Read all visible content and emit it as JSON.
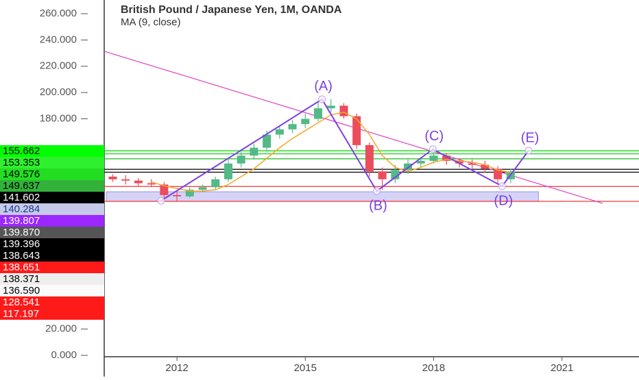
{
  "chart_data": {
    "type": "candlestick",
    "title": "British Pound / Japanese Yen, 1M, OANDA",
    "xlim": [
      2010.3,
      2022.8
    ],
    "xticks": [
      2012,
      2015,
      2018,
      2021
    ],
    "ylim": [
      0,
      260
    ],
    "yticks": [
      {
        "value": 0,
        "label": "0.000"
      },
      {
        "value": 20,
        "label": "20.000"
      },
      {
        "value": 180,
        "label": "180.000"
      },
      {
        "value": 200,
        "label": "200.000"
      },
      {
        "value": 220,
        "label": "220.000"
      },
      {
        "value": 240,
        "label": "240.000"
      },
      {
        "value": 260,
        "label": "260.000"
      }
    ],
    "up_color": "#53b987",
    "down_color": "#eb4d5c",
    "x": [
      2010.5,
      2010.8,
      2011.1,
      2011.4,
      2011.7,
      2012.0,
      2012.3,
      2012.6,
      2012.9,
      2013.2,
      2013.5,
      2013.8,
      2014.1,
      2014.4,
      2014.7,
      2015.0,
      2015.3,
      2015.6,
      2015.9,
      2016.2,
      2016.5,
      2016.8,
      2017.1,
      2017.4,
      2017.7,
      2018.0,
      2018.3,
      2018.6,
      2018.9,
      2019.2,
      2019.5,
      2019.8
    ],
    "open": [
      136,
      134,
      133,
      131,
      130,
      122,
      121,
      126,
      128,
      134,
      146,
      152,
      158,
      168,
      172,
      176,
      180,
      188,
      190,
      182,
      160,
      140,
      134,
      141,
      146,
      148,
      152,
      148,
      146,
      145,
      142,
      134
    ],
    "high": [
      138,
      137,
      135,
      134,
      132,
      125,
      128,
      130,
      136,
      149,
      155,
      161,
      171,
      175,
      179,
      184,
      193,
      195,
      192,
      184,
      162,
      143,
      145,
      149,
      151,
      156,
      154,
      150,
      149,
      148,
      144,
      142
    ],
    "low": [
      132,
      130,
      129,
      128,
      118,
      117,
      120,
      124,
      126,
      132,
      143,
      149,
      155,
      165,
      169,
      173,
      178,
      185,
      180,
      157,
      136,
      126,
      131,
      138,
      143,
      146,
      145,
      143,
      141,
      139,
      130,
      131
    ],
    "close": [
      134,
      133,
      131,
      130,
      122,
      121,
      126,
      128,
      134,
      146,
      152,
      158,
      168,
      172,
      176,
      180,
      188,
      190,
      182,
      160,
      140,
      134,
      141,
      146,
      148,
      152,
      148,
      146,
      145,
      142,
      134,
      140
    ],
    "ma": {
      "name": "MA (9, close)",
      "color": "#f5a623",
      "values": [
        null,
        null,
        null,
        132,
        129,
        127,
        125,
        125,
        126,
        130,
        136,
        142,
        150,
        158,
        165,
        171,
        177,
        183,
        185,
        180,
        168,
        152,
        143,
        140,
        143,
        147,
        149,
        148,
        147,
        145,
        141,
        139
      ]
    },
    "trendline": {
      "color": "#e040c0",
      "x": [
        2010.3,
        2021.95
      ],
      "y": [
        231.4,
        115.7
      ]
    },
    "zone": {
      "color": "#b9b6f0",
      "x": [
        2010.35,
        2020.45
      ],
      "y": [
        117.197,
        124.5
      ]
    },
    "wave": {
      "color": "#7b3fe4",
      "x": [
        2011.63,
        2015.39,
        2016.67,
        2017.98,
        2019.6,
        2020.22
      ],
      "y": [
        117.7,
        194.9,
        125,
        156.9,
        128.7,
        155.8
      ],
      "labels": [
        null,
        "(A)",
        "(B)",
        "(C)",
        "(D)",
        "(E)"
      ]
    },
    "price_labels": [
      {
        "value": 155.662,
        "label": "155.662",
        "background": "#00ff00",
        "text_color": "#000000",
        "line_color": "#00d000"
      },
      {
        "value": 153.353,
        "label": "153.353",
        "background": "#2ef02e",
        "text_color": "#000000",
        "line_color": "#00d000"
      },
      {
        "value": 149.576,
        "label": "149.576",
        "background": "#22dd22",
        "text_color": "#000000",
        "line_color": "#00b000"
      },
      {
        "value": 149.637,
        "label": "149.637",
        "background": "#32b23a",
        "text_color": "#000000"
      },
      {
        "value": 141.602,
        "label": "141.602",
        "background": "#000000",
        "text_color": "#ffffff",
        "line_color": "#000000"
      },
      {
        "value": 140.284,
        "label": "140.284",
        "background": "#c5cae9",
        "text_color": "#1e3a8a"
      },
      {
        "value": 139.807,
        "label": "139.807",
        "background": "#9c27ff",
        "text_color": "#ffffff"
      },
      {
        "value": 139.87,
        "label": "139.870",
        "background": "#555555",
        "text_color": "#ffffff"
      },
      {
        "value": 139.396,
        "label": "139.396",
        "background": "#000000",
        "text_color": "#ffffff",
        "line_color": "#000000"
      },
      {
        "value": 138.643,
        "label": "138.643",
        "background": "#000000",
        "text_color": "#ffffff"
      },
      {
        "value": 138.651,
        "label": "138.651",
        "background": "#ff1a1a",
        "text_color": "#ffffff"
      },
      {
        "value": 138.371,
        "label": "138.371",
        "background": "#eeeeee",
        "text_color": "#000000"
      },
      {
        "value": 136.59,
        "label": "136.590",
        "background": "#fafafa",
        "text_color": "#000000"
      },
      {
        "value": 128.541,
        "label": "128.541",
        "background": "#ff1a1a",
        "text_color": "#ffffff",
        "line_color": "#ff2020"
      },
      {
        "value": 117.197,
        "label": "117.197",
        "background": "#ff1a1a",
        "text_color": "#ffffff",
        "line_color": "#ff2020"
      }
    ]
  }
}
